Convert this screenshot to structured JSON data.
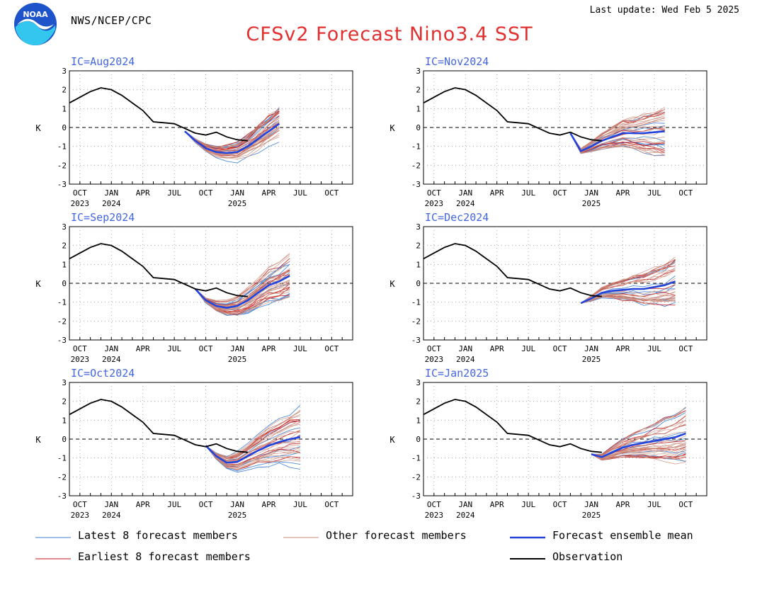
{
  "header": {
    "agency": "NWS/NCEP/CPC",
    "last_update": "Last update: Wed Feb 5 2025",
    "title": "CFSv2 Forecast Nino3.4 SST",
    "logo_text": "NOAA"
  },
  "colors": {
    "latest": "#3d7fd6",
    "other": "#c98b7a",
    "mean": "#2244dd",
    "earliest": "#c81818",
    "observation": "#000000",
    "ic_label": "#4466dd"
  },
  "chart_data": [
    {
      "type": "line",
      "ic_label": "IC=Aug2024",
      "ylabel": "K",
      "ylim": [
        -3,
        3
      ],
      "yticks": [
        "3",
        "2",
        "1",
        "0",
        "-1",
        "-2",
        "-3"
      ],
      "grid": true,
      "months_since_sep2023": [
        0,
        21
      ],
      "x_tick_labels": [
        "OCT",
        "JAN",
        "APR",
        "JUL",
        "OCT",
        "JAN",
        "APR",
        "JUL",
        "OCT"
      ],
      "year_labels": [
        {
          "text": "2023",
          "at": "OCT 2023"
        },
        {
          "text": "2024",
          "at": "JAN 2024"
        },
        {
          "text": "2025",
          "at": "JAN 2025"
        }
      ],
      "observation": {
        "x": [
          0,
          1,
          2,
          3,
          4,
          5,
          6,
          7,
          8,
          9,
          10,
          11,
          12,
          13,
          14,
          15,
          16,
          17
        ],
        "y": [
          1.3,
          1.6,
          1.9,
          2.1,
          2.0,
          1.7,
          1.3,
          0.9,
          0.3,
          0.25,
          0.2,
          -0.05,
          -0.3,
          -0.4,
          -0.25,
          -0.5,
          -0.65,
          -0.7
        ]
      },
      "ensemble_mean": {
        "x": [
          11,
          12,
          13,
          14,
          15,
          16,
          17,
          18,
          19,
          20
        ],
        "y": [
          -0.2,
          -0.7,
          -1.1,
          -1.3,
          -1.35,
          -1.3,
          -1.0,
          -0.6,
          -0.2,
          0.2
        ]
      },
      "members": {
        "start_month": 11,
        "end_month": 20,
        "count": 40,
        "spread_end": [
          -0.7,
          1.3
        ]
      }
    },
    {
      "type": "line",
      "ic_label": "IC=Nov2024",
      "ylabel": "K",
      "ylim": [
        -3,
        3
      ],
      "yticks": [
        "3",
        "2",
        "1",
        "0",
        "-1",
        "-2",
        "-3"
      ],
      "grid": true,
      "months_since_sep2023": [
        0,
        21
      ],
      "x_tick_labels": [
        "OCT",
        "JAN",
        "APR",
        "JUL",
        "OCT",
        "JAN",
        "APR",
        "JUL",
        "OCT"
      ],
      "year_labels": [
        {
          "text": "2023",
          "at": "OCT 2023"
        },
        {
          "text": "2024",
          "at": "JAN 2024"
        },
        {
          "text": "2025",
          "at": "JAN 2025"
        }
      ],
      "observation": {
        "x": [
          0,
          1,
          2,
          3,
          4,
          5,
          6,
          7,
          8,
          9,
          10,
          11,
          12,
          13,
          14,
          15,
          16,
          17
        ],
        "y": [
          1.3,
          1.6,
          1.9,
          2.1,
          2.0,
          1.7,
          1.3,
          0.9,
          0.3,
          0.25,
          0.2,
          -0.05,
          -0.3,
          -0.4,
          -0.25,
          -0.5,
          -0.65,
          -0.7
        ]
      },
      "ensemble_mean": {
        "x": [
          14,
          15,
          16,
          17,
          18,
          19,
          20,
          21,
          22,
          23
        ],
        "y": [
          -0.3,
          -1.25,
          -1.0,
          -0.7,
          -0.5,
          -0.3,
          -0.3,
          -0.3,
          -0.25,
          -0.2
        ]
      },
      "members": {
        "start_month": 14,
        "end_month": 23,
        "count": 40,
        "spread_end": [
          -1.7,
          1.1
        ]
      }
    },
    {
      "type": "line",
      "ic_label": "IC=Sep2024",
      "ylabel": "K",
      "ylim": [
        -3,
        3
      ],
      "yticks": [
        "3",
        "2",
        "1",
        "0",
        "-1",
        "-2",
        "-3"
      ],
      "grid": true,
      "months_since_sep2023": [
        0,
        21
      ],
      "x_tick_labels": [
        "OCT",
        "JAN",
        "APR",
        "JUL",
        "OCT",
        "JAN",
        "APR",
        "JUL",
        "OCT"
      ],
      "year_labels": [
        {
          "text": "2023",
          "at": "OCT 2023"
        },
        {
          "text": "2024",
          "at": "JAN 2024"
        },
        {
          "text": "2025",
          "at": "JAN 2025"
        }
      ],
      "observation": {
        "x": [
          0,
          1,
          2,
          3,
          4,
          5,
          6,
          7,
          8,
          9,
          10,
          11,
          12,
          13,
          14,
          15,
          16,
          17
        ],
        "y": [
          1.3,
          1.6,
          1.9,
          2.1,
          2.0,
          1.7,
          1.3,
          0.9,
          0.3,
          0.25,
          0.2,
          -0.05,
          -0.3,
          -0.4,
          -0.25,
          -0.5,
          -0.65,
          -0.7
        ]
      },
      "ensemble_mean": {
        "x": [
          12,
          13,
          14,
          15,
          16,
          17,
          18,
          19,
          20,
          21
        ],
        "y": [
          -0.3,
          -0.9,
          -1.2,
          -1.3,
          -1.2,
          -0.9,
          -0.5,
          -0.1,
          0.1,
          0.4
        ]
      },
      "members": {
        "start_month": 12,
        "end_month": 21,
        "count": 40,
        "spread_end": [
          -0.9,
          1.7
        ]
      }
    },
    {
      "type": "line",
      "ic_label": "IC=Dec2024",
      "ylabel": "K",
      "ylim": [
        -3,
        3
      ],
      "yticks": [
        "3",
        "2",
        "1",
        "0",
        "-1",
        "-2",
        "-3"
      ],
      "grid": true,
      "months_since_sep2023": [
        0,
        21
      ],
      "x_tick_labels": [
        "OCT",
        "JAN",
        "APR",
        "JUL",
        "OCT",
        "JAN",
        "APR",
        "JUL",
        "OCT"
      ],
      "year_labels": [
        {
          "text": "2023",
          "at": "OCT 2023"
        },
        {
          "text": "2024",
          "at": "JAN 2024"
        },
        {
          "text": "2025",
          "at": "JAN 2025"
        }
      ],
      "observation": {
        "x": [
          0,
          1,
          2,
          3,
          4,
          5,
          6,
          7,
          8,
          9,
          10,
          11,
          12,
          13,
          14,
          15,
          16,
          17
        ],
        "y": [
          1.3,
          1.6,
          1.9,
          2.1,
          2.0,
          1.7,
          1.3,
          0.9,
          0.3,
          0.25,
          0.2,
          -0.05,
          -0.3,
          -0.4,
          -0.25,
          -0.5,
          -0.65,
          -0.7
        ]
      },
      "ensemble_mean": {
        "x": [
          15,
          16,
          17,
          18,
          19,
          20,
          21,
          22,
          23,
          24
        ],
        "y": [
          -1.05,
          -0.8,
          -0.5,
          -0.4,
          -0.35,
          -0.3,
          -0.3,
          -0.2,
          -0.1,
          0.1
        ]
      },
      "members": {
        "start_month": 15,
        "end_month": 24,
        "count": 40,
        "spread_end": [
          -1.3,
          1.5
        ]
      }
    },
    {
      "type": "line",
      "ic_label": "IC=Oct2024",
      "ylabel": "K",
      "ylim": [
        -3,
        3
      ],
      "yticks": [
        "3",
        "2",
        "1",
        "0",
        "-1",
        "-2",
        "-3"
      ],
      "grid": true,
      "months_since_sep2023": [
        0,
        21
      ],
      "x_tick_labels": [
        "OCT",
        "JAN",
        "APR",
        "JUL",
        "OCT",
        "JAN",
        "APR",
        "JUL",
        "OCT"
      ],
      "year_labels": [
        {
          "text": "2023",
          "at": "OCT 2023"
        },
        {
          "text": "2024",
          "at": "JAN 2024"
        },
        {
          "text": "2025",
          "at": "JAN 2025"
        }
      ],
      "observation": {
        "x": [
          0,
          1,
          2,
          3,
          4,
          5,
          6,
          7,
          8,
          9,
          10,
          11,
          12,
          13,
          14,
          15,
          16,
          17
        ],
        "y": [
          1.3,
          1.6,
          1.9,
          2.1,
          2.0,
          1.7,
          1.3,
          0.9,
          0.3,
          0.25,
          0.2,
          -0.05,
          -0.3,
          -0.4,
          -0.25,
          -0.5,
          -0.65,
          -0.7
        ]
      },
      "ensemble_mean": {
        "x": [
          13,
          14,
          15,
          16,
          17,
          18,
          19,
          20,
          21,
          22
        ],
        "y": [
          -0.35,
          -0.9,
          -1.25,
          -1.2,
          -0.9,
          -0.6,
          -0.35,
          -0.15,
          0.0,
          0.1
        ]
      },
      "members": {
        "start_month": 13,
        "end_month": 22,
        "count": 40,
        "spread_end": [
          -1.9,
          1.6
        ]
      }
    },
    {
      "type": "line",
      "ic_label": "IC=Jan2025",
      "ylabel": "K",
      "ylim": [
        -3,
        3
      ],
      "yticks": [
        "3",
        "2",
        "1",
        "0",
        "-1",
        "-2",
        "-3"
      ],
      "grid": true,
      "months_since_sep2023": [
        0,
        21
      ],
      "x_tick_labels": [
        "OCT",
        "JAN",
        "APR",
        "JUL",
        "OCT",
        "JAN",
        "APR",
        "JUL",
        "OCT"
      ],
      "year_labels": [
        {
          "text": "2023",
          "at": "OCT 2023"
        },
        {
          "text": "2024",
          "at": "JAN 2024"
        },
        {
          "text": "2025",
          "at": "JAN 2025"
        }
      ],
      "observation": {
        "x": [
          0,
          1,
          2,
          3,
          4,
          5,
          6,
          7,
          8,
          9,
          10,
          11,
          12,
          13,
          14,
          15,
          16,
          17
        ],
        "y": [
          1.3,
          1.6,
          1.9,
          2.1,
          2.0,
          1.7,
          1.3,
          0.9,
          0.3,
          0.25,
          0.2,
          -0.05,
          -0.3,
          -0.4,
          -0.25,
          -0.5,
          -0.65,
          -0.7
        ]
      },
      "ensemble_mean": {
        "x": [
          16,
          17,
          18,
          19,
          20,
          21,
          22,
          23,
          24,
          25
        ],
        "y": [
          -0.8,
          -0.95,
          -0.7,
          -0.45,
          -0.3,
          -0.2,
          -0.1,
          0.0,
          0.1,
          0.3
        ]
      },
      "members": {
        "start_month": 16,
        "end_month": 25,
        "count": 40,
        "spread_end": [
          -1.1,
          2.1
        ]
      }
    }
  ],
  "legend": [
    {
      "key": "latest",
      "label": "Latest 8 forecast members"
    },
    {
      "key": "other",
      "label": "Other forecast members"
    },
    {
      "key": "mean",
      "label": "Forecast ensemble mean"
    },
    {
      "key": "earliest",
      "label": "Earliest 8 forecast members"
    },
    {
      "key": "observation",
      "label": "Observation"
    }
  ]
}
